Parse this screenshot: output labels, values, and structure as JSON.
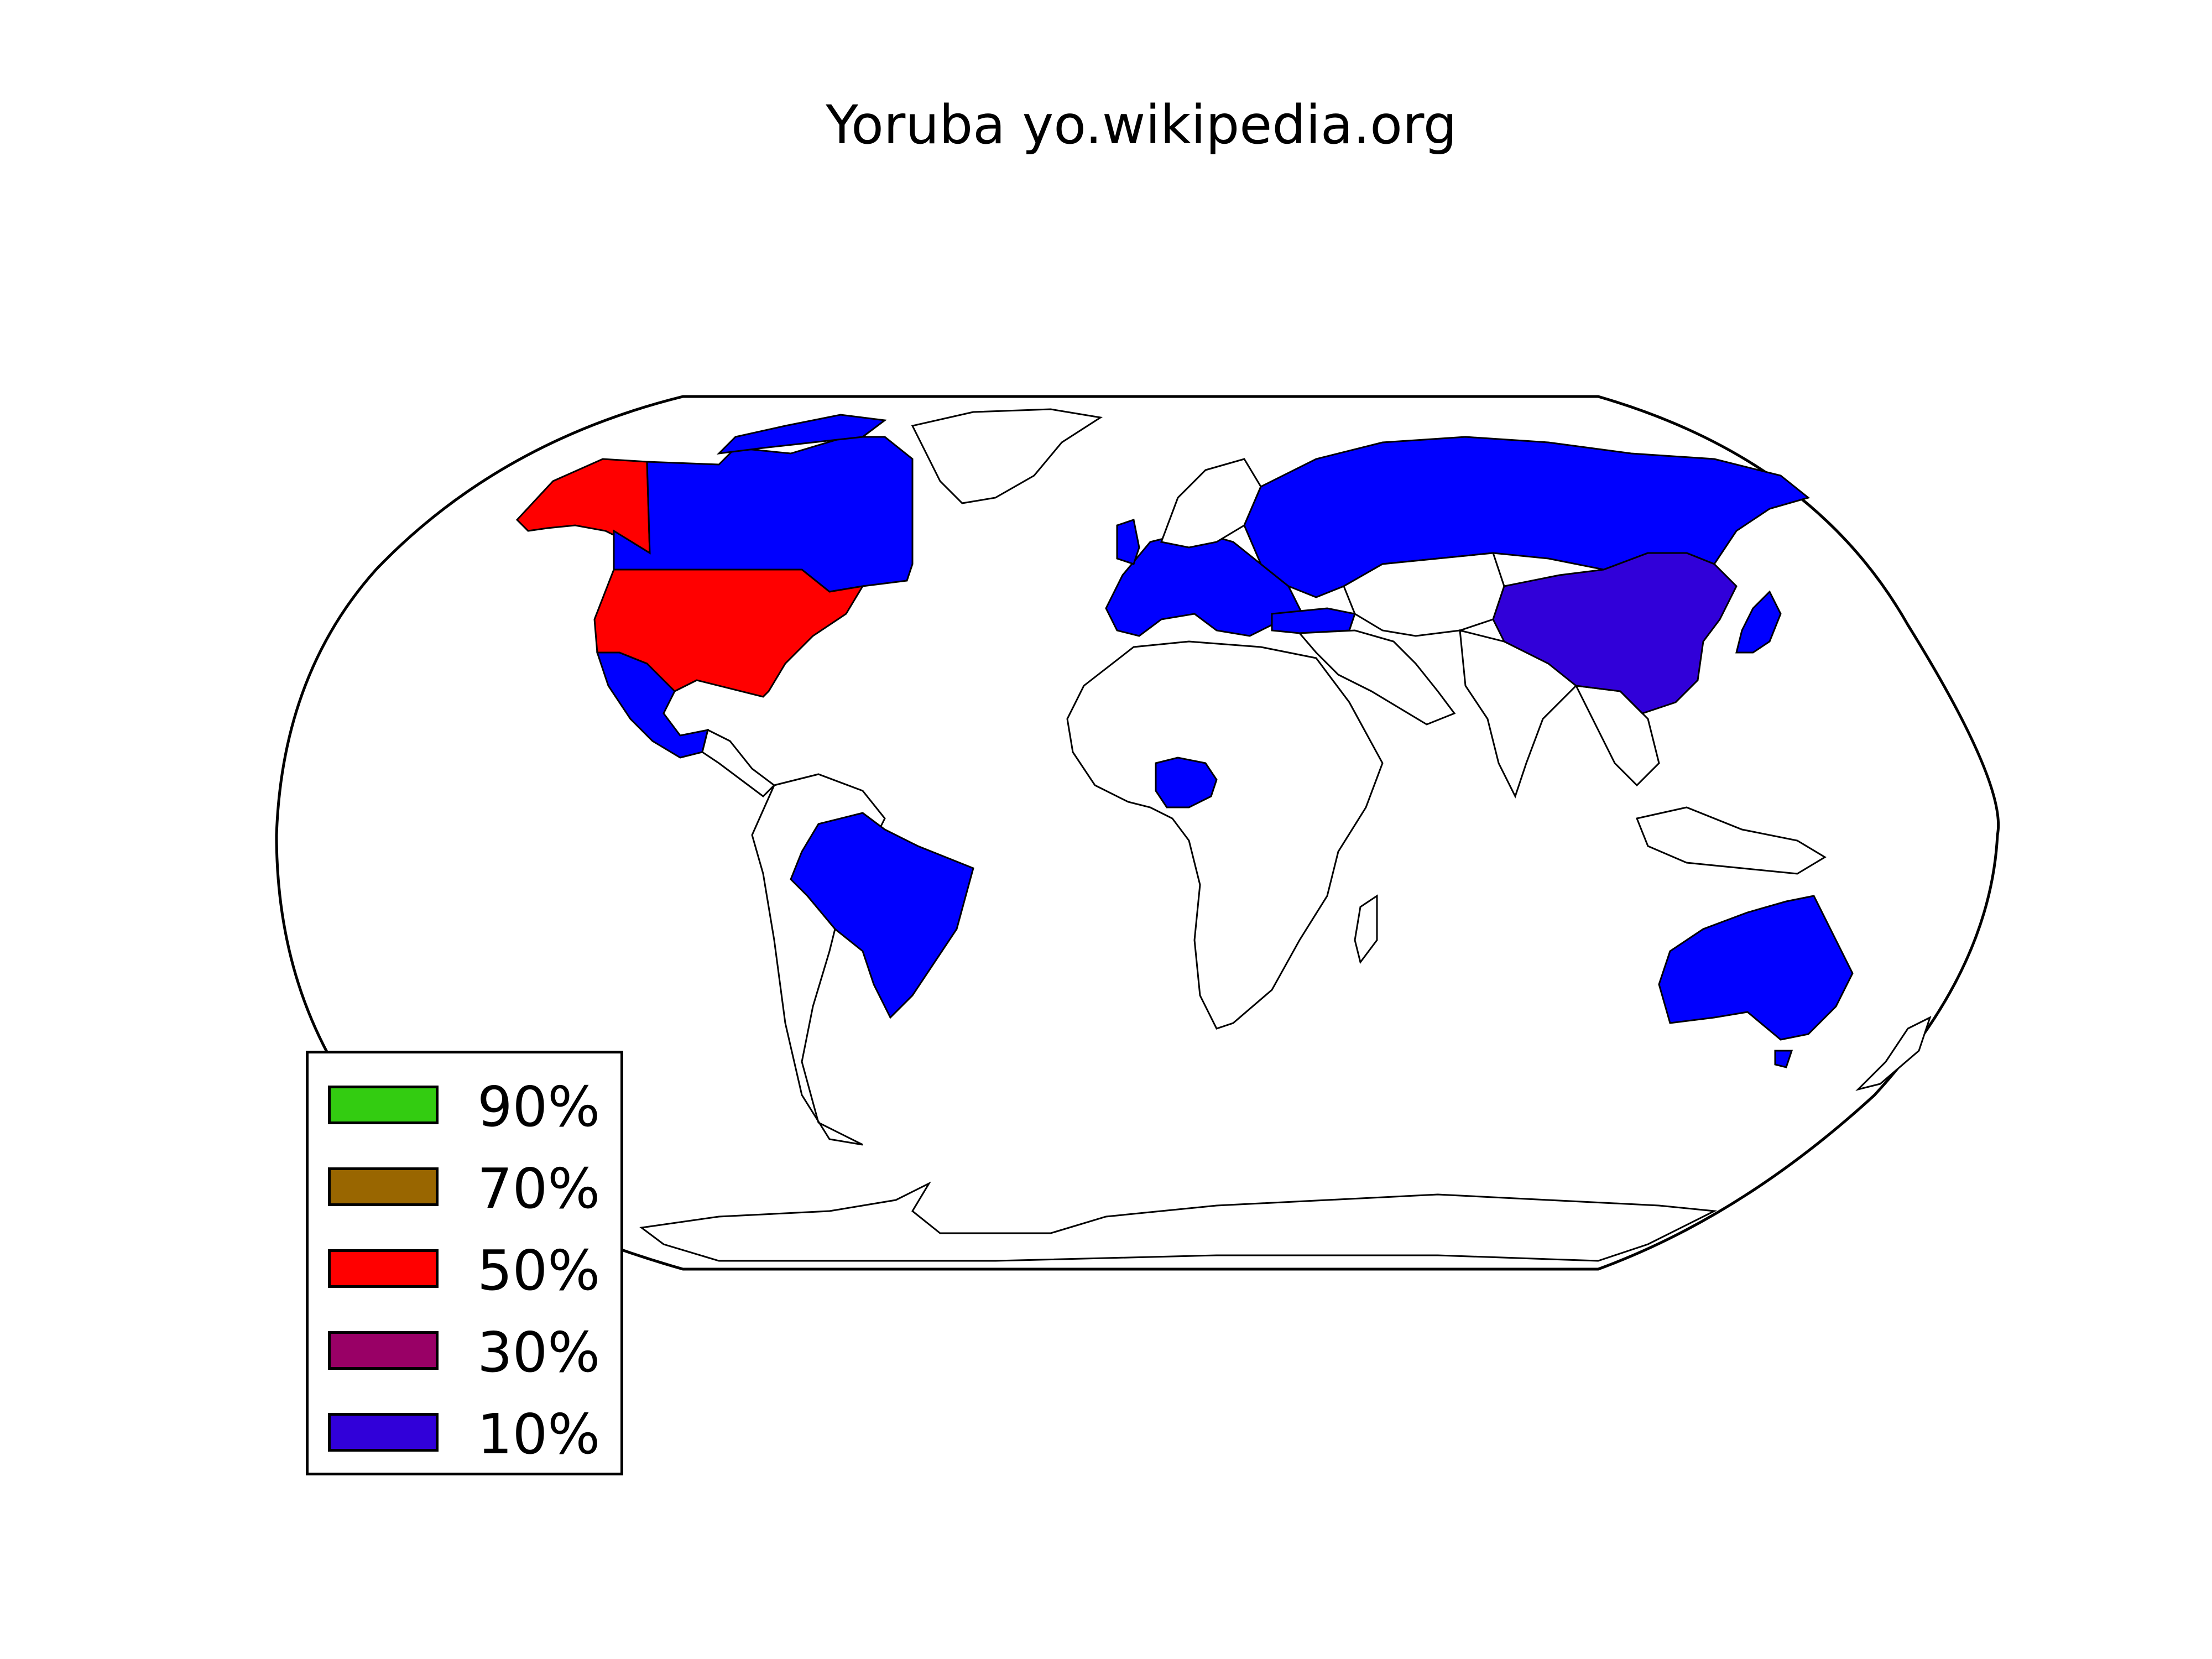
{
  "title": "Yoruba yo.wikipedia.org",
  "colors": {
    "p10": "#3100d9",
    "p10_bright": "#0000ff",
    "p30": "#990066",
    "p50": "#ff0000",
    "p70": "#996600",
    "p90": "#33cc11",
    "land_default": "#ffffff",
    "border": "#000000"
  },
  "legend": [
    {
      "label": "90%",
      "color": "#33cc11"
    },
    {
      "label": "70%",
      "color": "#996600"
    },
    {
      "label": "50%",
      "color": "#ff0000"
    },
    {
      "label": "30%",
      "color": "#990066"
    },
    {
      "label": "10%",
      "color": "#3100d9"
    }
  ],
  "map": {
    "projection": "Robinson",
    "regions": [
      {
        "name": "Alaska",
        "category": "50%"
      },
      {
        "name": "United States",
        "category": "50%"
      },
      {
        "name": "Canada",
        "category": "10%"
      },
      {
        "name": "Mexico",
        "category": "10%"
      },
      {
        "name": "Brazil",
        "category": "10%"
      },
      {
        "name": "Nigeria",
        "category": "10%"
      },
      {
        "name": "Russia",
        "category": "10%"
      },
      {
        "name": "China",
        "category": "10%"
      },
      {
        "name": "Japan",
        "category": "10%"
      },
      {
        "name": "Australia",
        "category": "10%"
      },
      {
        "name": "United Kingdom",
        "category": "10%"
      },
      {
        "name": "Europe",
        "category": "10%"
      },
      {
        "name": "Turkey",
        "category": "10%"
      }
    ]
  }
}
